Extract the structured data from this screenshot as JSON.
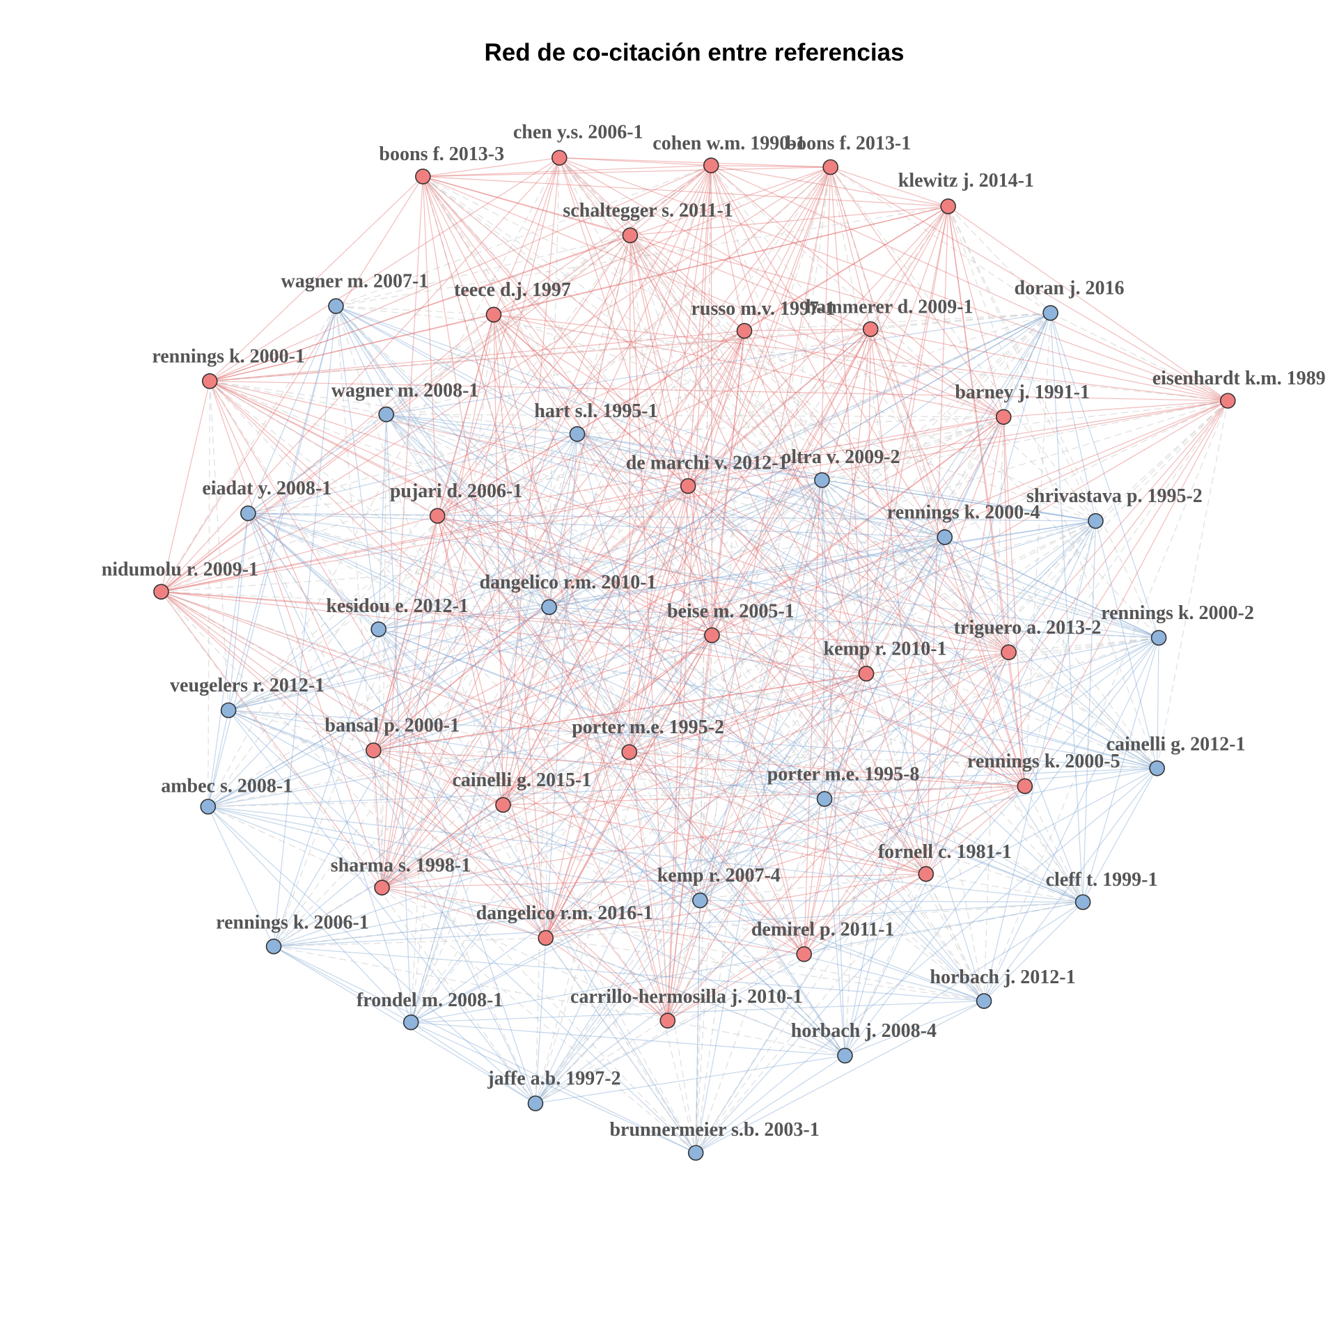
{
  "title": "Red de co-citación entre referencias",
  "colors": {
    "cluster_red": "#f08080",
    "cluster_blue": "#8fb4dc",
    "edge_red": "#e05a5a",
    "edge_blue": "#6f9ccc",
    "edge_grey": "#c8c8c8",
    "node_stroke": "#333333",
    "label": "#555555"
  },
  "clusters": [
    {
      "id": "red",
      "color": "#f08080"
    },
    {
      "id": "blue",
      "color": "#8fb4dc"
    }
  ],
  "nodes": [
    {
      "id": "n1",
      "label": "chen y.s. 2006-1",
      "cluster": "red"
    },
    {
      "id": "n2",
      "label": "cohen w.m. 1990-1",
      "cluster": "red"
    },
    {
      "id": "n3",
      "label": "boons f. 2013-1",
      "cluster": "red"
    },
    {
      "id": "n4",
      "label": "boons f. 2013-3",
      "cluster": "red"
    },
    {
      "id": "n5",
      "label": "klewitz j. 2014-1",
      "cluster": "red"
    },
    {
      "id": "n6",
      "label": "schaltegger s. 2011-1",
      "cluster": "red"
    },
    {
      "id": "n7",
      "label": "wagner m. 2007-1",
      "cluster": "blue"
    },
    {
      "id": "n8",
      "label": "teece d.j. 1997",
      "cluster": "red"
    },
    {
      "id": "n9",
      "label": "doran j. 2016",
      "cluster": "blue"
    },
    {
      "id": "n10",
      "label": "russo m.v. 1997-1",
      "cluster": "red"
    },
    {
      "id": "n11",
      "label": "hammerer d. 2009-1",
      "cluster": "red"
    },
    {
      "id": "n12",
      "label": "rennings k. 2000-1",
      "cluster": "red"
    },
    {
      "id": "n13",
      "label": "eisenhardt k.m. 1989",
      "cluster": "red"
    },
    {
      "id": "n14",
      "label": "wagner m. 2008-1",
      "cluster": "blue"
    },
    {
      "id": "n15",
      "label": "barney j. 1991-1",
      "cluster": "red"
    },
    {
      "id": "n16",
      "label": "hart s.l. 1995-1",
      "cluster": "blue"
    },
    {
      "id": "n17",
      "label": "de marchi v. 2012-1",
      "cluster": "red"
    },
    {
      "id": "n18",
      "label": "oltra v. 2009-2",
      "cluster": "blue"
    },
    {
      "id": "n19",
      "label": "eiadat y. 2008-1",
      "cluster": "blue"
    },
    {
      "id": "n20",
      "label": "pujari d. 2006-1",
      "cluster": "red"
    },
    {
      "id": "n21",
      "label": "shrivastava p. 1995-2",
      "cluster": "blue"
    },
    {
      "id": "n22",
      "label": "rennings k. 2000-4",
      "cluster": "blue"
    },
    {
      "id": "n23",
      "label": "nidumolu r. 2009-1",
      "cluster": "red"
    },
    {
      "id": "n24",
      "label": "dangelico r.m. 2010-1",
      "cluster": "blue"
    },
    {
      "id": "n25",
      "label": "kesidou e. 2012-1",
      "cluster": "blue"
    },
    {
      "id": "n26",
      "label": "beise m. 2005-1",
      "cluster": "red"
    },
    {
      "id": "n27",
      "label": "rennings k. 2000-2",
      "cluster": "blue"
    },
    {
      "id": "n28",
      "label": "triguero a. 2013-2",
      "cluster": "red"
    },
    {
      "id": "n29",
      "label": "kemp r. 2010-1",
      "cluster": "red"
    },
    {
      "id": "n30",
      "label": "veugelers r. 2012-1",
      "cluster": "blue"
    },
    {
      "id": "n31",
      "label": "bansal p. 2000-1",
      "cluster": "red"
    },
    {
      "id": "n32",
      "label": "porter m.e. 1995-2",
      "cluster": "red"
    },
    {
      "id": "n33",
      "label": "cainelli g. 2012-1",
      "cluster": "blue"
    },
    {
      "id": "n34",
      "label": "rennings k. 2000-5",
      "cluster": "red"
    },
    {
      "id": "n35",
      "label": "ambec s. 2008-1",
      "cluster": "blue"
    },
    {
      "id": "n36",
      "label": "cainelli g. 2015-1",
      "cluster": "red"
    },
    {
      "id": "n37",
      "label": "porter m.e. 1995-8",
      "cluster": "blue"
    },
    {
      "id": "n38",
      "label": "fornell c. 1981-1",
      "cluster": "red"
    },
    {
      "id": "n39",
      "label": "sharma s. 1998-1",
      "cluster": "red"
    },
    {
      "id": "n40",
      "label": "kemp r. 2007-4",
      "cluster": "blue"
    },
    {
      "id": "n41",
      "label": "cleff t. 1999-1",
      "cluster": "blue"
    },
    {
      "id": "n42",
      "label": "rennings k. 2006-1",
      "cluster": "blue"
    },
    {
      "id": "n43",
      "label": "dangelico r.m. 2016-1",
      "cluster": "red"
    },
    {
      "id": "n44",
      "label": "demirel p. 2011-1",
      "cluster": "red"
    },
    {
      "id": "n45",
      "label": "horbach j. 2012-1",
      "cluster": "blue"
    },
    {
      "id": "n46",
      "label": "frondel m. 2008-1",
      "cluster": "blue"
    },
    {
      "id": "n47",
      "label": "carrillo-hermosilla j. 2010-1",
      "cluster": "red"
    },
    {
      "id": "n48",
      "label": "horbach j. 2008-4",
      "cluster": "blue"
    },
    {
      "id": "n49",
      "label": "jaffe a.b. 1997-2",
      "cluster": "blue"
    },
    {
      "id": "n50",
      "label": "brunnermeier s.b. 2003-1",
      "cluster": "blue"
    }
  ]
}
